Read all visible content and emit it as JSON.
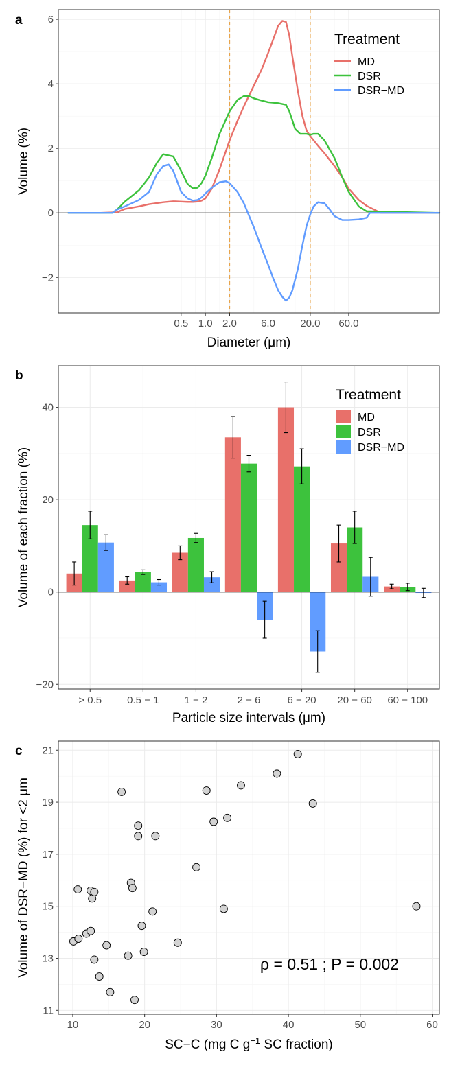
{
  "chart_data": [
    {
      "panel": "a",
      "type": "line",
      "xlabel": "Diameter (μm)",
      "ylabel": "Volume (%)",
      "x_scale": "log",
      "xlim": [
        0.015,
        800
      ],
      "ylim": [
        -3.1,
        6.3
      ],
      "xticks": [
        0.5,
        1.0,
        2.0,
        6.0,
        20.0,
        60.0
      ],
      "xtick_labels": [
        "0.5",
        "1.0",
        "2.0",
        "6.0",
        "20.0",
        "60.0"
      ],
      "yticks": [
        -2,
        0,
        2,
        4,
        6
      ],
      "vlines": [
        2,
        20
      ],
      "hline": 0,
      "grid": true,
      "legend": {
        "title": "Treatment",
        "position": "top-right"
      },
      "series": [
        {
          "name": "MD",
          "color": "#E8706A",
          "x": [
            0.02,
            0.05,
            0.08,
            0.1,
            0.15,
            0.2,
            0.3,
            0.4,
            0.5,
            0.6,
            0.7,
            0.8,
            0.9,
            1.0,
            1.2,
            1.5,
            2.0,
            2.5,
            3.0,
            4.0,
            5.0,
            6.0,
            7.0,
            8.0,
            9.0,
            10.0,
            11.0,
            12.0,
            14.0,
            16.0,
            18.0,
            20.0,
            25.0,
            30.0,
            40.0,
            50.0,
            60.0,
            80.0,
            100.0,
            120.0,
            150.0,
            800.0
          ],
          "y": [
            0,
            0,
            0.02,
            0.12,
            0.2,
            0.27,
            0.33,
            0.36,
            0.35,
            0.34,
            0.34,
            0.35,
            0.38,
            0.45,
            0.75,
            1.35,
            2.25,
            2.85,
            3.3,
            3.95,
            4.45,
            4.95,
            5.4,
            5.8,
            5.95,
            5.92,
            5.5,
            4.85,
            3.8,
            3.0,
            2.55,
            2.38,
            2.08,
            1.85,
            1.45,
            1.1,
            0.75,
            0.4,
            0.22,
            0.12,
            0,
            0
          ]
        },
        {
          "name": "DSR",
          "color": "#3DC23D",
          "x": [
            0.02,
            0.05,
            0.07,
            0.08,
            0.1,
            0.15,
            0.2,
            0.25,
            0.3,
            0.4,
            0.5,
            0.6,
            0.7,
            0.8,
            0.9,
            1.0,
            1.2,
            1.5,
            2.0,
            2.5,
            3.0,
            3.5,
            4.0,
            5.0,
            6.0,
            8.0,
            10.0,
            11.0,
            13.0,
            15.0,
            18.0,
            20.0,
            22.0,
            25.0,
            30.0,
            40.0,
            50.0,
            60.0,
            80.0,
            100.0,
            800.0
          ],
          "y": [
            0,
            0,
            0,
            0.1,
            0.35,
            0.7,
            1.1,
            1.55,
            1.82,
            1.75,
            1.3,
            0.9,
            0.76,
            0.78,
            0.93,
            1.15,
            1.7,
            2.45,
            3.15,
            3.5,
            3.62,
            3.62,
            3.55,
            3.48,
            3.43,
            3.4,
            3.35,
            3.15,
            2.6,
            2.45,
            2.45,
            2.42,
            2.45,
            2.45,
            2.25,
            1.7,
            1.1,
            0.65,
            0.2,
            0.05,
            0
          ]
        },
        {
          "name": "DSR−MD",
          "color": "#619CFF",
          "x": [
            0.02,
            0.05,
            0.07,
            0.08,
            0.1,
            0.15,
            0.2,
            0.25,
            0.3,
            0.35,
            0.4,
            0.5,
            0.6,
            0.7,
            0.8,
            0.9,
            1.0,
            1.2,
            1.5,
            1.8,
            2.0,
            2.5,
            3.0,
            4.0,
            5.0,
            6.0,
            7.0,
            8.0,
            9.0,
            10.0,
            11.0,
            12.0,
            14.0,
            16.0,
            18.0,
            20.0,
            22.0,
            25.0,
            30.0,
            35.0,
            40.0,
            50.0,
            60.0,
            80.0,
            100.0,
            110.0,
            800.0
          ],
          "y": [
            0,
            0,
            0,
            0.1,
            0.2,
            0.4,
            0.65,
            1.2,
            1.45,
            1.5,
            1.3,
            0.65,
            0.45,
            0.38,
            0.4,
            0.48,
            0.6,
            0.78,
            0.95,
            0.98,
            0.92,
            0.65,
            0.3,
            -0.45,
            -1.1,
            -1.6,
            -2.05,
            -2.4,
            -2.6,
            -2.72,
            -2.62,
            -2.4,
            -1.75,
            -1.0,
            -0.4,
            -0.05,
            0.2,
            0.33,
            0.3,
            0.1,
            -0.1,
            -0.22,
            -0.22,
            -0.2,
            -0.15,
            0,
            0
          ]
        }
      ]
    },
    {
      "panel": "b",
      "type": "bar",
      "xlabel": "Particle size intervals (μm)",
      "ylabel": "Volume of each fraction (%)",
      "categories": [
        "> 0.5",
        "0.5 − 1",
        "1 − 2",
        "2 − 6",
        "6 − 20",
        "20 − 60",
        "60 − 100"
      ],
      "ylim": [
        -21,
        49
      ],
      "yticks": [
        -20,
        0,
        20,
        40
      ],
      "hline": 0,
      "grid": true,
      "legend": {
        "title": "Treatment",
        "position": "top-right"
      },
      "series": [
        {
          "name": "MD",
          "color": "#E8706A",
          "values": [
            4,
            2.5,
            8.5,
            33.5,
            40,
            10.5,
            1.2
          ],
          "errors": [
            2.5,
            0.8,
            1.5,
            4.5,
            5.5,
            4.0,
            0.5
          ]
        },
        {
          "name": "DSR",
          "color": "#3DC23D",
          "values": [
            14.5,
            4.3,
            11.7,
            27.8,
            27.2,
            14,
            1.1
          ],
          "errors": [
            3.0,
            0.5,
            1.0,
            1.8,
            3.8,
            3.5,
            0.8
          ]
        },
        {
          "name": "DSR−MD",
          "color": "#619CFF",
          "values": [
            10.7,
            2.1,
            3.2,
            -6,
            -12.9,
            3.3,
            -0.2
          ],
          "errors": [
            1.7,
            0.6,
            1.2,
            4.0,
            4.5,
            4.2,
            1.0
          ]
        }
      ]
    },
    {
      "panel": "c",
      "type": "scatter",
      "xlabel": "SC−C (mg C g",
      "xlabel_sup": "−1",
      "xlabel_tail": " SC fraction)",
      "ylabel": "Volume of DSR−MD (%) for <2 μm",
      "xlim": [
        8,
        61
      ],
      "ylim": [
        10.85,
        21.35
      ],
      "xticks": [
        10,
        20,
        30,
        40,
        50,
        60
      ],
      "yticks": [
        11,
        13,
        15,
        17,
        19,
        21
      ],
      "grid": true,
      "point_color": "#D3D3D3",
      "annotation": "ρ = 0.51 ; P = 0.002",
      "points": [
        [
          10.1,
          13.65
        ],
        [
          10.8,
          13.75
        ],
        [
          10.7,
          15.65
        ],
        [
          11.9,
          13.95
        ],
        [
          12.5,
          14.05
        ],
        [
          12.5,
          15.6
        ],
        [
          12.7,
          15.3
        ],
        [
          13.0,
          15.55
        ],
        [
          13.0,
          12.95
        ],
        [
          13.7,
          12.3
        ],
        [
          14.7,
          13.5
        ],
        [
          15.2,
          11.7
        ],
        [
          16.8,
          19.4
        ],
        [
          17.7,
          13.1
        ],
        [
          18.1,
          15.9
        ],
        [
          18.3,
          15.7
        ],
        [
          18.6,
          11.4
        ],
        [
          19.1,
          18.1
        ],
        [
          19.1,
          17.7
        ],
        [
          19.6,
          14.25
        ],
        [
          19.9,
          13.25
        ],
        [
          21.1,
          14.8
        ],
        [
          21.5,
          17.7
        ],
        [
          24.6,
          13.6
        ],
        [
          27.2,
          16.5
        ],
        [
          28.6,
          19.45
        ],
        [
          29.6,
          18.25
        ],
        [
          31.0,
          14.9
        ],
        [
          31.5,
          18.4
        ],
        [
          33.4,
          19.65
        ],
        [
          38.4,
          20.1
        ],
        [
          41.3,
          20.85
        ],
        [
          43.4,
          18.95
        ],
        [
          57.8,
          15.0
        ]
      ]
    }
  ]
}
